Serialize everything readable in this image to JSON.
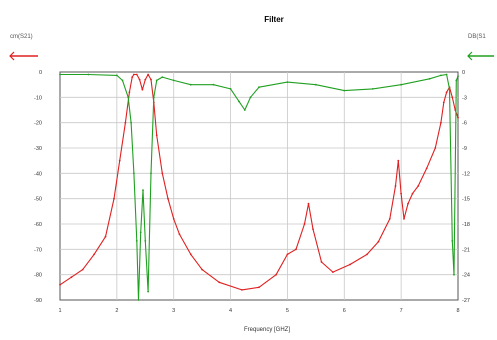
{
  "chart_data": {
    "type": "line",
    "title": "Filter",
    "xlabel": "Frequency [GHZ]",
    "ylabel_left": "cm(S21)",
    "ylabel_right": "DB(S1",
    "xlim": [
      1,
      8
    ],
    "ylim_left": [
      -90,
      0
    ],
    "ylim_right": [
      -27,
      0
    ],
    "x_ticks": [
      "1",
      "2",
      "3",
      "4",
      "5",
      "6",
      "7",
      "8"
    ],
    "y_ticks_left": [
      "0",
      "-10",
      "-20",
      "-30",
      "-40",
      "-50",
      "-60",
      "-70",
      "-80",
      "-90"
    ],
    "y_ticks_right": [
      "0",
      "-3",
      "-6",
      "-9",
      "-12",
      "-15",
      "-18",
      "-21",
      "-24",
      "-27"
    ],
    "grid": true,
    "series": [
      {
        "name": "cm(S21)",
        "axis": "left",
        "color": "#e02020",
        "x": [
          1.0,
          1.2,
          1.4,
          1.6,
          1.8,
          1.95,
          2.05,
          2.15,
          2.22,
          2.27,
          2.3,
          2.35,
          2.4,
          2.45,
          2.5,
          2.55,
          2.6,
          2.65,
          2.7,
          2.8,
          2.9,
          3.0,
          3.1,
          3.3,
          3.5,
          3.8,
          4.2,
          4.5,
          4.8,
          5.0,
          5.15,
          5.3,
          5.37,
          5.45,
          5.6,
          5.8,
          6.1,
          6.4,
          6.6,
          6.8,
          6.9,
          6.95,
          7.0,
          7.05,
          7.12,
          7.2,
          7.3,
          7.45,
          7.6,
          7.7,
          7.75,
          7.8,
          7.85,
          7.9,
          7.95,
          8.0
        ],
        "y": [
          -84,
          -81,
          -78,
          -72,
          -65,
          -50,
          -35,
          -20,
          -8,
          -2,
          -1,
          -1,
          -3,
          -7,
          -3,
          -1,
          -3,
          -12,
          -25,
          -40,
          -50,
          -58,
          -64,
          -72,
          -78,
          -83,
          -86,
          -85,
          -80,
          -72,
          -70,
          -60,
          -52,
          -62,
          -75,
          -79,
          -76,
          -72,
          -67,
          -58,
          -45,
          -35,
          -48,
          -58,
          -52,
          -48,
          -45,
          -38,
          -30,
          -20,
          -12,
          -8,
          -6,
          -10,
          -15,
          -18
        ]
      },
      {
        "name": "DB(S1",
        "axis": "right",
        "color": "#20a020",
        "x": [
          1.0,
          1.5,
          2.0,
          2.1,
          2.2,
          2.25,
          2.3,
          2.35,
          2.38,
          2.42,
          2.46,
          2.5,
          2.55,
          2.6,
          2.65,
          2.7,
          2.8,
          3.0,
          3.3,
          3.7,
          4.0,
          4.15,
          4.25,
          4.35,
          4.5,
          5.0,
          5.5,
          6.0,
          6.5,
          7.0,
          7.5,
          7.7,
          7.8,
          7.85,
          7.9,
          7.93,
          7.97,
          8.0
        ],
        "y": [
          -0.3,
          -0.3,
          -0.4,
          -1.0,
          -3.0,
          -6.0,
          -12.0,
          -20.0,
          -27.0,
          -19.0,
          -14.0,
          -20.0,
          -26.0,
          -12.0,
          -3.0,
          -1.0,
          -0.6,
          -1.0,
          -1.5,
          -1.5,
          -2.0,
          -3.5,
          -4.5,
          -3.0,
          -1.8,
          -1.2,
          -1.5,
          -2.2,
          -2.0,
          -1.5,
          -0.8,
          -0.4,
          -0.3,
          -2.0,
          -20.0,
          -24.0,
          -1.0,
          -0.5
        ]
      }
    ]
  }
}
